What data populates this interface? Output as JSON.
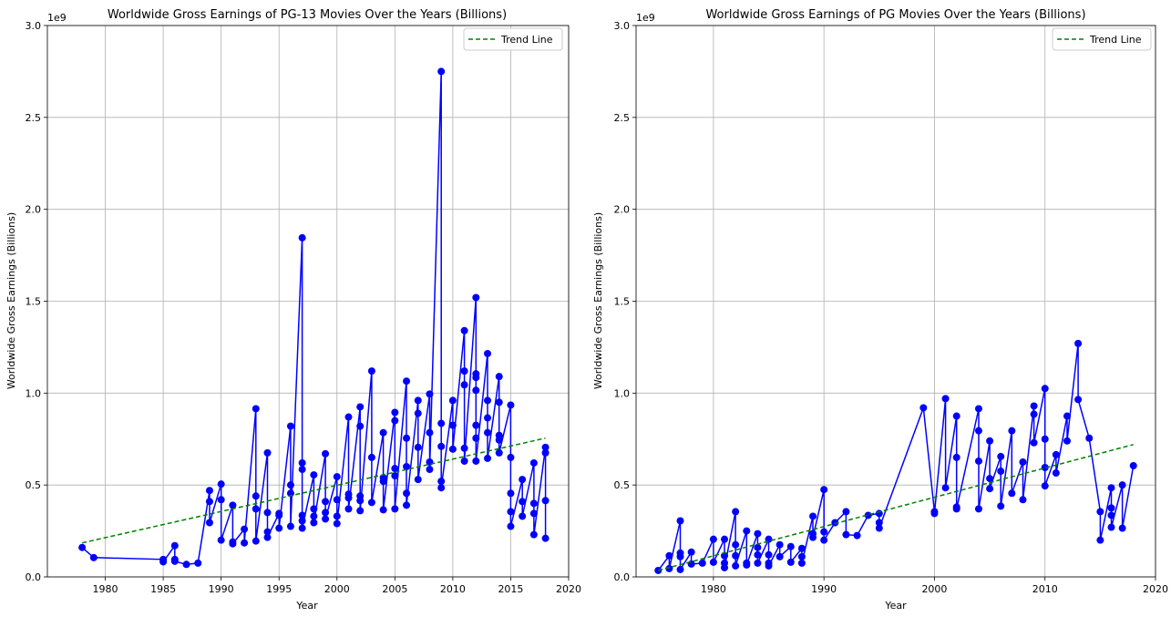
{
  "chart_data": [
    {
      "type": "line",
      "title": "Worldwide Gross Earnings of PG-13 Movies Over the Years (Billions)",
      "xlabel": "Year",
      "ylabel": "Worldwide Gross Earnings (Billions)",
      "y_offset_text": "1e9",
      "xlim": [
        1975,
        2020
      ],
      "ylim": [
        0,
        3.0
      ],
      "y_unit": "billions",
      "xticks": [
        1980,
        1985,
        1990,
        1995,
        2000,
        2005,
        2010,
        2015,
        2020
      ],
      "yticks": [
        0.0,
        0.5,
        1.0,
        1.5,
        2.0,
        2.5,
        3.0
      ],
      "grid": true,
      "legend_position": "top-right",
      "series": [
        {
          "marker": "circle",
          "color": "#0000ff",
          "x": [
            1978,
            1979,
            1985,
            1985,
            1986,
            1986,
            1986,
            1987,
            1988,
            1989,
            1989,
            1989,
            1990,
            1990,
            1990,
            1991,
            1991,
            1991,
            1992,
            1992,
            1993,
            1993,
            1993,
            1993,
            1994,
            1994,
            1994,
            1994,
            1995,
            1995,
            1995,
            1996,
            1996,
            1996,
            1996,
            1997,
            1997,
            1997,
            1997,
            1997,
            1997,
            1998,
            1998,
            1998,
            1998,
            1999,
            1999,
            1999,
            1999,
            2000,
            2000,
            2000,
            2000,
            2001,
            2001,
            2001,
            2001,
            2002,
            2002,
            2002,
            2002,
            2002,
            2003,
            2003,
            2003,
            2004,
            2004,
            2004,
            2004,
            2005,
            2005,
            2005,
            2005,
            2005,
            2006,
            2006,
            2006,
            2006,
            2006,
            2007,
            2007,
            2007,
            2007,
            2008,
            2008,
            2008,
            2008,
            2009,
            2009,
            2009,
            2009,
            2009,
            2010,
            2010,
            2010,
            2011,
            2011,
            2011,
            2011,
            2011,
            2012,
            2012,
            2012,
            2012,
            2012,
            2012,
            2012,
            2013,
            2013,
            2013,
            2013,
            2013,
            2014,
            2014,
            2014,
            2014,
            2014,
            2015,
            2015,
            2015,
            2015,
            2015,
            2016,
            2016,
            2016,
            2017,
            2017,
            2017,
            2017,
            2018,
            2018,
            2018,
            2018
          ],
          "y": [
            0.16,
            0.105,
            0.095,
            0.082,
            0.17,
            0.095,
            0.085,
            0.068,
            0.075,
            0.47,
            0.41,
            0.295,
            0.505,
            0.42,
            0.2,
            0.39,
            0.19,
            0.18,
            0.26,
            0.185,
            0.915,
            0.44,
            0.37,
            0.195,
            0.675,
            0.35,
            0.245,
            0.215,
            0.345,
            0.335,
            0.265,
            0.82,
            0.5,
            0.455,
            0.275,
            1.845,
            0.62,
            0.585,
            0.335,
            0.305,
            0.265,
            0.555,
            0.37,
            0.33,
            0.295,
            0.67,
            0.41,
            0.35,
            0.315,
            0.545,
            0.42,
            0.33,
            0.29,
            0.87,
            0.45,
            0.43,
            0.37,
            0.925,
            0.82,
            0.44,
            0.415,
            0.36,
            1.12,
            0.65,
            0.405,
            0.785,
            0.54,
            0.52,
            0.365,
            0.895,
            0.85,
            0.59,
            0.55,
            0.37,
            1.065,
            0.755,
            0.6,
            0.455,
            0.39,
            0.96,
            0.89,
            0.705,
            0.53,
            0.995,
            0.785,
            0.625,
            0.585,
            2.75,
            0.835,
            0.71,
            0.52,
            0.485,
            0.96,
            0.825,
            0.695,
            1.34,
            1.12,
            1.045,
            0.7,
            0.63,
            1.52,
            1.105,
            1.085,
            1.015,
            0.825,
            0.755,
            0.63,
            1.215,
            0.96,
            0.865,
            0.785,
            0.645,
            1.09,
            0.95,
            0.77,
            0.745,
            0.675,
            0.935,
            0.65,
            0.455,
            0.355,
            0.275,
            0.53,
            0.41,
            0.33,
            0.62,
            0.4,
            0.345,
            0.23,
            0.705,
            0.675,
            0.415,
            0.21
          ]
        },
        {
          "name": "Trend Line",
          "style": "dashed",
          "color": "#008000",
          "x": [
            1978,
            2018
          ],
          "y": [
            0.185,
            0.755
          ]
        }
      ]
    },
    {
      "type": "line",
      "title": "Worldwide Gross Earnings of PG Movies Over the Years (Billions)",
      "xlabel": "Year",
      "ylabel": "Worldwide Gross Earnings (Billions)",
      "y_offset_text": "1e9",
      "xlim": [
        1973,
        2020
      ],
      "ylim": [
        0,
        3.0
      ],
      "y_unit": "billions",
      "xticks": [
        1980,
        1990,
        2000,
        2010,
        2020
      ],
      "yticks": [
        0.0,
        0.5,
        1.0,
        1.5,
        2.0,
        2.5,
        3.0
      ],
      "grid": true,
      "legend_position": "top-right",
      "series": [
        {
          "marker": "circle",
          "color": "#0000ff",
          "x": [
            1975,
            1976,
            1976,
            1977,
            1977,
            1977,
            1977,
            1978,
            1978,
            1979,
            1980,
            1980,
            1981,
            1981,
            1981,
            1981,
            1982,
            1982,
            1982,
            1982,
            1983,
            1983,
            1983,
            1984,
            1984,
            1984,
            1984,
            1985,
            1985,
            1985,
            1985,
            1986,
            1986,
            1987,
            1987,
            1988,
            1988,
            1988,
            1989,
            1989,
            1989,
            1990,
            1990,
            1990,
            1991,
            1992,
            1992,
            1993,
            1994,
            1995,
            1995,
            1995,
            1999,
            2000,
            2000,
            2001,
            2001,
            2002,
            2002,
            2002,
            2002,
            2004,
            2004,
            2004,
            2004,
            2005,
            2005,
            2005,
            2006,
            2006,
            2006,
            2007,
            2007,
            2008,
            2008,
            2009,
            2009,
            2009,
            2010,
            2010,
            2010,
            2010,
            2011,
            2011,
            2012,
            2012,
            2013,
            2013,
            2014,
            2015,
            2015,
            2016,
            2016,
            2016,
            2016,
            2017,
            2017,
            2018
          ],
          "y": [
            0.035,
            0.115,
            0.045,
            0.305,
            0.13,
            0.11,
            0.04,
            0.135,
            0.07,
            0.075,
            0.205,
            0.08,
            0.205,
            0.115,
            0.075,
            0.05,
            0.355,
            0.175,
            0.115,
            0.06,
            0.25,
            0.075,
            0.065,
            0.235,
            0.16,
            0.12,
            0.075,
            0.205,
            0.12,
            0.075,
            0.06,
            0.175,
            0.11,
            0.165,
            0.08,
            0.155,
            0.11,
            0.075,
            0.33,
            0.235,
            0.215,
            0.475,
            0.245,
            0.2,
            0.295,
            0.355,
            0.23,
            0.225,
            0.335,
            0.345,
            0.295,
            0.265,
            0.92,
            0.355,
            0.345,
            0.97,
            0.485,
            0.875,
            0.65,
            0.38,
            0.37,
            0.915,
            0.795,
            0.63,
            0.37,
            0.74,
            0.535,
            0.48,
            0.655,
            0.575,
            0.385,
            0.795,
            0.455,
            0.625,
            0.42,
            0.93,
            0.885,
            0.73,
            1.025,
            0.75,
            0.595,
            0.495,
            0.665,
            0.565,
            0.875,
            0.74,
            1.27,
            0.965,
            0.755,
            0.355,
            0.2,
            0.485,
            0.375,
            0.335,
            0.27,
            0.5,
            0.265,
            0.605
          ]
        },
        {
          "name": "Trend Line",
          "style": "dashed",
          "color": "#008000",
          "x": [
            1975,
            2018
          ],
          "y": [
            0.035,
            0.72
          ]
        }
      ]
    }
  ]
}
